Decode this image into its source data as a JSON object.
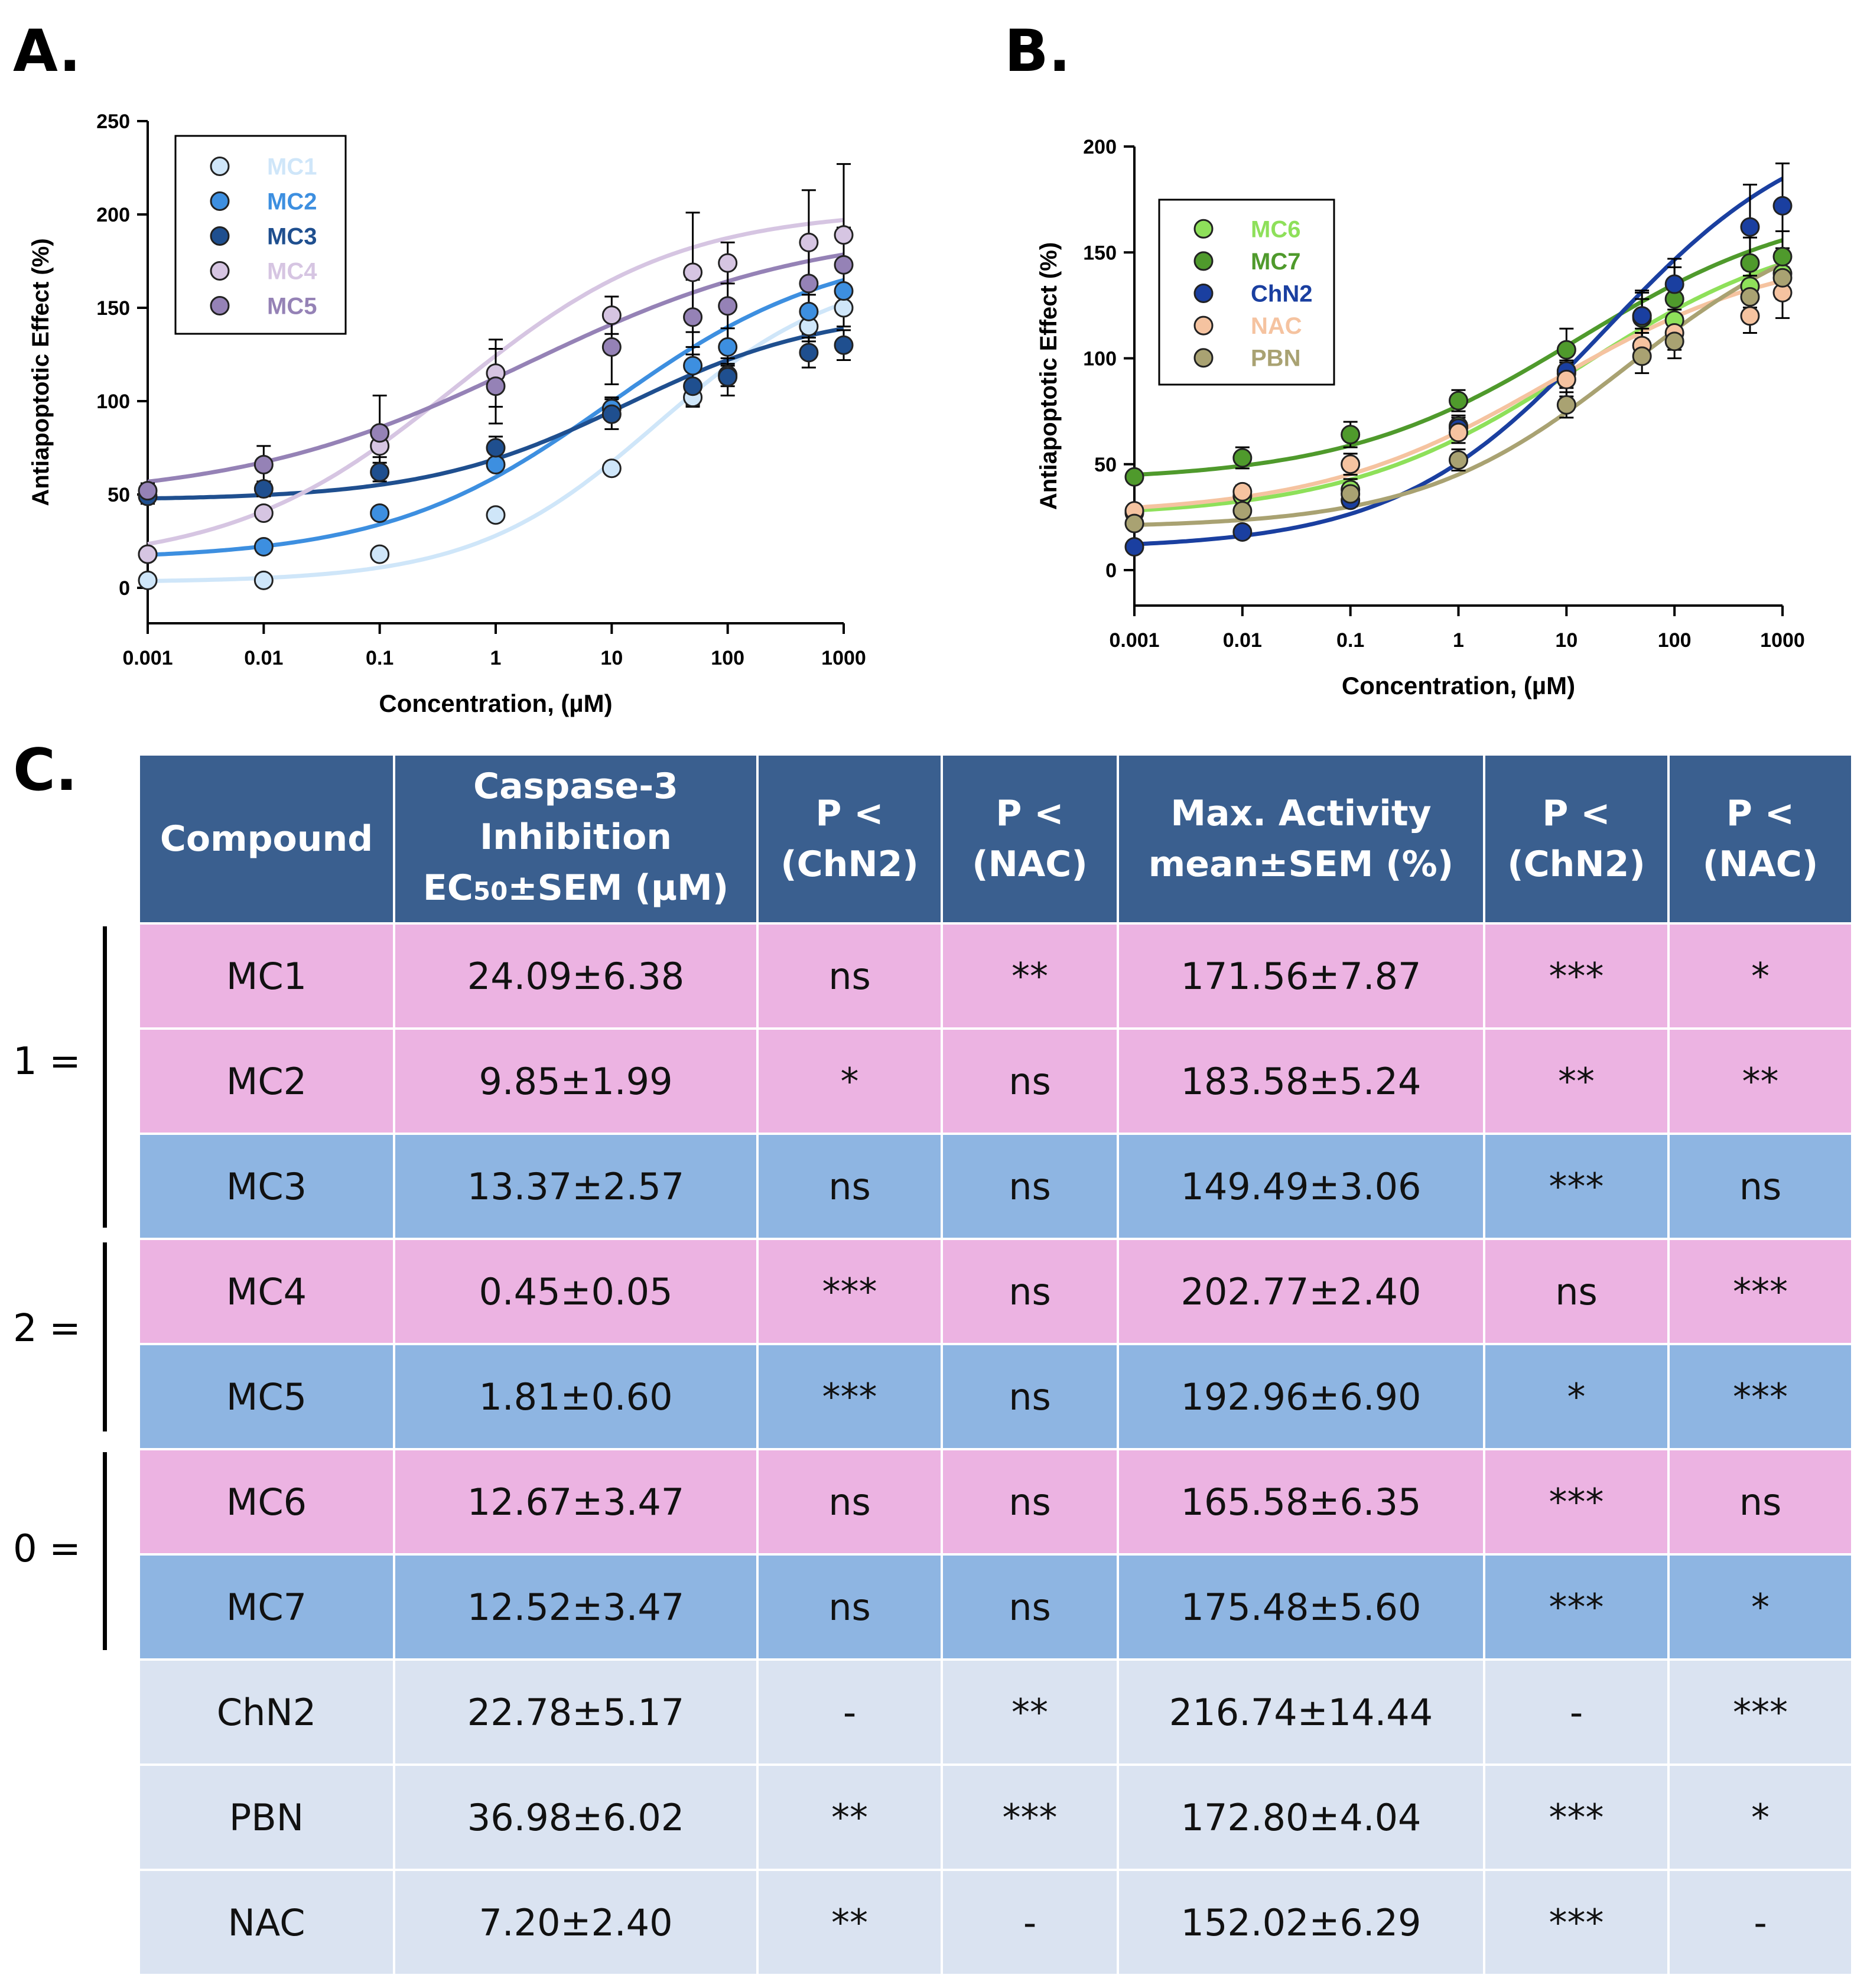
{
  "panels": {
    "a": "A.",
    "b": "B.",
    "c": "C."
  },
  "chart_data": [
    {
      "type": "scatter",
      "xlabel": "Concentration, (µM)",
      "ylabel": "Antiapoptotic Effect (%)",
      "x_scale": "log",
      "xlim": [
        0.001,
        1000
      ],
      "ylim": [
        0,
        250
      ],
      "xticks": [
        "0.001",
        "0.01",
        "0.1",
        "1",
        "10",
        "100",
        "1000"
      ],
      "yticks": [
        "0",
        "50",
        "100",
        "150",
        "200",
        "250"
      ],
      "legend_position": "top-left",
      "x": [
        0.001,
        0.01,
        0.1,
        1,
        10,
        50,
        100,
        500,
        1000
      ],
      "series": [
        {
          "name": "MC1",
          "color": "#cfe6f9",
          "values": [
            4,
            4,
            18,
            39,
            64,
            102,
            114,
            140,
            150
          ],
          "err": [
            0,
            0,
            0,
            0,
            0,
            5,
            6,
            8,
            10
          ],
          "fit": {
            "bottom": 3,
            "top": 171.56,
            "ec50": 24.09,
            "hill": 0.55
          }
        },
        {
          "name": "MC2",
          "color": "#3d8fe0",
          "values": [
            18,
            22,
            40,
            66,
            96,
            119,
            129,
            148,
            159
          ],
          "err": [
            0,
            0,
            0,
            3,
            6,
            10,
            10,
            12,
            12
          ],
          "fit": {
            "bottom": 15,
            "top": 183.58,
            "ec50": 9.85,
            "hill": 0.45
          }
        },
        {
          "name": "MC3",
          "color": "#1f4f8f",
          "values": [
            49,
            53,
            62,
            75,
            93,
            108,
            113,
            126,
            130
          ],
          "err": [
            4,
            4,
            5,
            6,
            8,
            10,
            10,
            8,
            8
          ],
          "fit": {
            "bottom": 47,
            "top": 149.49,
            "ec50": 13.37,
            "hill": 0.5
          }
        },
        {
          "name": "MC4",
          "color": "#d6c5e2",
          "values": [
            18,
            40,
            76,
            115,
            146,
            169,
            174,
            185,
            189
          ],
          "err": [
            0,
            0,
            6,
            18,
            10,
            32,
            11,
            28,
            38
          ],
          "fit": {
            "bottom": 12,
            "top": 202.77,
            "ec50": 0.45,
            "hill": 0.45
          }
        },
        {
          "name": "MC5",
          "color": "#9582b6",
          "values": [
            52,
            66,
            83,
            108,
            129,
            145,
            151,
            163,
            173
          ],
          "err": [
            4,
            10,
            20,
            20,
            20,
            20,
            20,
            20,
            20
          ],
          "fit": {
            "bottom": 47,
            "top": 192.96,
            "ec50": 1.81,
            "hill": 0.35
          }
        }
      ]
    },
    {
      "type": "scatter",
      "xlabel": "Concentration, (µM)",
      "ylabel": "Antiapoptotic Effect (%)",
      "x_scale": "log",
      "xlim": [
        0.001,
        1000
      ],
      "ylim": [
        0,
        200
      ],
      "xticks": [
        "0.001",
        "0.01",
        "0.1",
        "1",
        "10",
        "100",
        "1000"
      ],
      "yticks": [
        "0",
        "50",
        "100",
        "150",
        "200"
      ],
      "legend_position": "top-left",
      "x": [
        0.001,
        0.01,
        0.1,
        1,
        10,
        50,
        100,
        500,
        1000
      ],
      "series": [
        {
          "name": "MC6",
          "color": "#8ee05a",
          "values": [
            27,
            35,
            38,
            68,
            93,
            120,
            118,
            134,
            140
          ],
          "err": [
            0,
            3,
            5,
            5,
            6,
            8,
            10,
            10,
            10
          ],
          "fit": {
            "bottom": 25,
            "top": 165.58,
            "ec50": 12.67,
            "hill": 0.4
          }
        },
        {
          "name": "MC7",
          "color": "#4f9a2c",
          "values": [
            44,
            53,
            64,
            80,
            104,
            119,
            128,
            145,
            148
          ],
          "err": [
            0,
            5,
            6,
            5,
            10,
            12,
            15,
            12,
            12
          ],
          "fit": {
            "bottom": 42,
            "top": 175.48,
            "ec50": 12.52,
            "hill": 0.4
          }
        },
        {
          "name": "ChN2",
          "color": "#1a3fa0",
          "values": [
            11,
            18,
            33,
            67,
            94,
            120,
            135,
            162,
            172
          ],
          "err": [
            0,
            0,
            3,
            5,
            8,
            12,
            12,
            20,
            20
          ],
          "fit": {
            "bottom": 10,
            "top": 216.74,
            "ec50": 22.78,
            "hill": 0.45
          }
        },
        {
          "name": "NAC",
          "color": "#f5c3a0",
          "values": [
            28,
            37,
            50,
            65,
            90,
            106,
            112,
            120,
            131
          ],
          "err": [
            0,
            3,
            5,
            5,
            8,
            8,
            8,
            8,
            12
          ],
          "fit": {
            "bottom": 26,
            "top": 152.02,
            "ec50": 7.2,
            "hill": 0.4
          }
        },
        {
          "name": "PBN",
          "color": "#a9a272",
          "values": [
            22,
            28,
            36,
            52,
            78,
            101,
            108,
            129,
            138
          ],
          "err": [
            0,
            3,
            5,
            5,
            6,
            8,
            8,
            10,
            10
          ],
          "fit": {
            "bottom": 20,
            "top": 172.8,
            "ec50": 36.98,
            "hill": 0.45
          }
        }
      ]
    }
  ],
  "table": {
    "headers": [
      "Compound",
      "Caspase-3 Inhibition EC50±SEM (µM)",
      "P < (ChN2)",
      "P < (NAC)",
      "Max. Activity mean±SEM (%)",
      "P < (ChN2)",
      "P < (NAC)"
    ],
    "header_lines": {
      "compound": "Compound",
      "ec50_l1": "Caspase-3",
      "ec50_l2": "Inhibition",
      "ec50_l3a": "EC",
      "ec50_l3sub": "50",
      "ec50_l3b": "±SEM (µM)",
      "p_l1": "P <",
      "chn2": "(ChN2)",
      "nac": "(NAC)",
      "max_l1": "Max. Activity",
      "max_l2": "mean±SEM (%)"
    },
    "rows": [
      {
        "style": "pink",
        "cells": [
          "MC1",
          "24.09±6.38",
          "ns",
          "**",
          "171.56±7.87",
          "***",
          "*"
        ]
      },
      {
        "style": "pink",
        "cells": [
          "MC2",
          "9.85±1.99",
          "*",
          "ns",
          "183.58±5.24",
          "**",
          "**"
        ]
      },
      {
        "style": "blue",
        "cells": [
          "MC3",
          "13.37±2.57",
          "ns",
          "ns",
          "149.49±3.06",
          "***",
          "ns"
        ]
      },
      {
        "style": "pink",
        "cells": [
          "MC4",
          "0.45±0.05",
          "***",
          "ns",
          "202.77±2.40",
          "ns",
          "***"
        ]
      },
      {
        "style": "blue",
        "cells": [
          "MC5",
          "1.81±0.60",
          "***",
          "ns",
          "192.96±6.90",
          "*",
          "***"
        ]
      },
      {
        "style": "pink",
        "cells": [
          "MC6",
          "12.67±3.47",
          "ns",
          "ns",
          "165.58±6.35",
          "***",
          "ns"
        ]
      },
      {
        "style": "blue",
        "cells": [
          "MC7",
          "12.52±3.47",
          "ns",
          "ns",
          "175.48±5.60",
          "***",
          "*"
        ]
      },
      {
        "style": "light",
        "cells": [
          "ChN2",
          "22.78±5.17",
          "-",
          "**",
          "216.74±14.44",
          "-",
          "***"
        ]
      },
      {
        "style": "light",
        "cells": [
          "PBN",
          "36.98±6.02",
          "**",
          "***",
          "172.80±4.04",
          "***",
          "*"
        ]
      },
      {
        "style": "light",
        "cells": [
          "NAC",
          "7.20±2.40",
          "**",
          "-",
          "152.02±6.29",
          "***",
          "-"
        ]
      }
    ],
    "groups": [
      "1 =",
      "2 =",
      "0 ="
    ]
  }
}
